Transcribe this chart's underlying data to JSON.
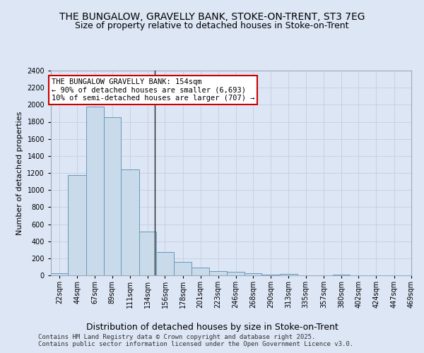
{
  "title": "THE BUNGALOW, GRAVELLY BANK, STOKE-ON-TRENT, ST3 7EG",
  "subtitle": "Size of property relative to detached houses in Stoke-on-Trent",
  "xlabel": "Distribution of detached houses by size in Stoke-on-Trent",
  "ylabel": "Number of detached properties",
  "bin_labels": [
    "22sqm",
    "44sqm",
    "67sqm",
    "89sqm",
    "111sqm",
    "134sqm",
    "156sqm",
    "178sqm",
    "201sqm",
    "223sqm",
    "246sqm",
    "268sqm",
    "290sqm",
    "313sqm",
    "335sqm",
    "357sqm",
    "380sqm",
    "402sqm",
    "424sqm",
    "447sqm",
    "469sqm"
  ],
  "bin_edges": [
    22,
    44,
    67,
    89,
    111,
    134,
    156,
    178,
    201,
    223,
    246,
    268,
    290,
    313,
    335,
    357,
    380,
    402,
    424,
    447,
    469
  ],
  "values": [
    25,
    1175,
    1975,
    1855,
    1240,
    515,
    275,
    155,
    90,
    50,
    42,
    22,
    12,
    18,
    0,
    0,
    12,
    0,
    0,
    0,
    0
  ],
  "bar_color": "#c9daea",
  "bar_edge_color": "#6699bb",
  "property_size": 154,
  "annotation_line1": "THE BUNGALOW GRAVELLY BANK: 154sqm",
  "annotation_line2": "← 90% of detached houses are smaller (6,693)",
  "annotation_line3": "10% of semi-detached houses are larger (707) →",
  "annotation_box_color": "#ffffff",
  "annotation_box_edge_color": "#cc0000",
  "vline_color": "#222222",
  "ylim": [
    0,
    2400
  ],
  "yticks": [
    0,
    200,
    400,
    600,
    800,
    1000,
    1200,
    1400,
    1600,
    1800,
    2000,
    2200,
    2400
  ],
  "grid_color": "#c8cce0",
  "background_color": "#dce6f5",
  "plot_bg_color": "#dce6f5",
  "footer_line1": "Contains HM Land Registry data © Crown copyright and database right 2025.",
  "footer_line2": "Contains public sector information licensed under the Open Government Licence v3.0.",
  "title_fontsize": 10,
  "subtitle_fontsize": 9,
  "annotation_fontsize": 7.5,
  "ylabel_fontsize": 8,
  "xlabel_fontsize": 9,
  "tick_fontsize": 7,
  "footer_fontsize": 6.5
}
